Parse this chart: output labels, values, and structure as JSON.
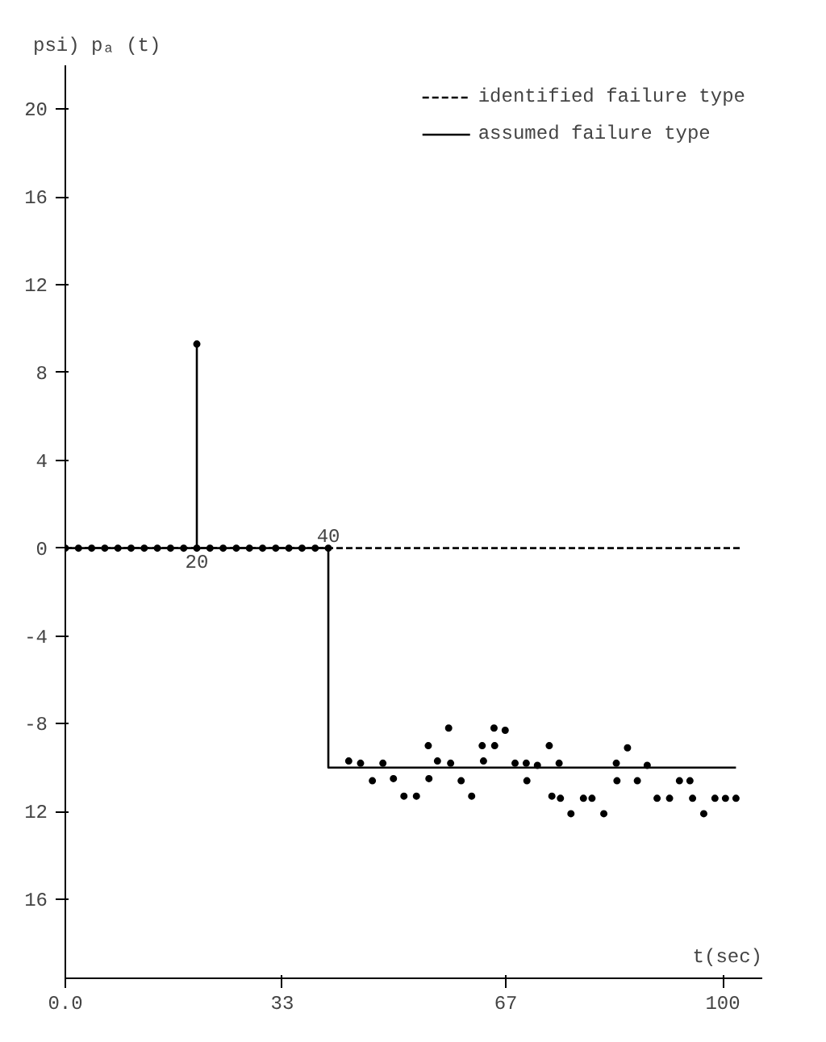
{
  "chart_data": {
    "type": "line",
    "xlabel": "t(sec)",
    "ylabel": "psi)  pₐ (t)",
    "xlim": [
      0,
      106
    ],
    "ylim": [
      -19.6,
      22
    ],
    "xticks": [
      {
        "value": 0,
        "label": "0.0"
      },
      33,
      67,
      100
    ],
    "yticks": [
      20,
      16,
      12,
      8,
      4,
      0,
      -4,
      -8,
      {
        "value": -12,
        "label": "12"
      },
      {
        "value": -16,
        "label": "16"
      }
    ],
    "grid": false,
    "legend": "top right",
    "annotations": [
      {
        "text": "20",
        "x": 20,
        "y": 0
      },
      {
        "text": "40",
        "x": 40,
        "y": 0
      }
    ],
    "series": [
      {
        "name": "identified failure type",
        "line_style": "dashed",
        "color": "#000000",
        "x": [
          0,
          103
        ],
        "values": [
          0,
          0
        ]
      },
      {
        "name": "assumed failure type",
        "line_style": "solid",
        "color": "#000000",
        "x": [
          0,
          40,
          40,
          102
        ],
        "values": [
          0,
          0,
          -10,
          -10
        ]
      },
      {
        "line_style": "solid",
        "color": "#000000",
        "x": [
          20,
          20
        ],
        "values": [
          0,
          9.3
        ]
      },
      {
        "type": "scatter",
        "marker": "circle",
        "color": "#000000",
        "x": [
          0,
          2,
          4,
          6,
          8,
          10,
          12,
          14,
          16,
          18,
          20,
          20,
          22,
          24,
          26,
          28,
          30,
          32,
          34,
          36,
          38,
          40,
          43.1,
          44.9,
          46.7,
          48.3,
          49.9,
          51.5,
          53.4,
          55.2,
          55.3,
          56.6,
          58.3,
          58.6,
          60.2,
          61.8,
          63.4,
          63.6,
          65.2,
          65.3,
          66.9,
          68.4,
          70.1,
          70.2,
          71.8,
          73.6,
          74.0,
          75.1,
          75.3,
          76.9,
          78.8,
          80.1,
          81.9,
          83.8,
          83.9,
          85.5,
          87.0,
          88.5,
          90.0,
          91.9,
          93.4,
          95.0,
          95.4,
          97.1,
          98.8,
          100.4,
          102.0
        ],
        "values": [
          0,
          0,
          0,
          0,
          0,
          0,
          0,
          0,
          0,
          0,
          0,
          9.3,
          0,
          0,
          0,
          0,
          0,
          0,
          0,
          0,
          0,
          0,
          -9.7,
          -9.8,
          -10.6,
          -9.8,
          -10.5,
          -11.3,
          -11.3,
          -9.0,
          -10.5,
          -9.7,
          -8.2,
          -9.8,
          -10.6,
          -11.3,
          -9.0,
          -9.7,
          -8.2,
          -9.0,
          -8.3,
          -9.8,
          -9.8,
          -10.6,
          -9.9,
          -9.0,
          -11.3,
          -9.8,
          -11.4,
          -12.1,
          -11.4,
          -11.4,
          -12.1,
          -9.8,
          -10.6,
          -9.1,
          -10.6,
          -9.9,
          -11.4,
          -11.4,
          -10.6,
          -10.6,
          -11.4,
          -12.1,
          -11.4,
          -11.4,
          -11.4
        ]
      }
    ]
  }
}
